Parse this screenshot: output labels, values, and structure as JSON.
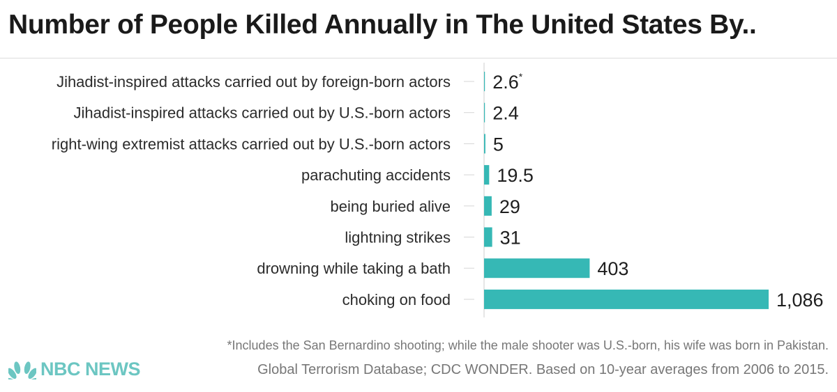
{
  "title": "Number of People Killed Annually in The United States By..",
  "chart_data": {
    "type": "bar",
    "orientation": "horizontal",
    "title": "Number of People Killed Annually in The United States By..",
    "categories": [
      "Jihadist-inspired attacks carried out by foreign-born actors",
      "Jihadist-inspired attacks carried out by U.S.-born actors",
      "right-wing extremist attacks carried out by U.S.-born actors",
      "parachuting accidents",
      "being buried alive",
      "lightning strikes",
      "drowning while taking a bath",
      "choking on food"
    ],
    "values": [
      2.6,
      2.4,
      5,
      19.5,
      29,
      31,
      403,
      1086
    ],
    "value_labels": [
      "2.6",
      "2.4",
      "5",
      "19.5",
      "29",
      "31",
      "403",
      "1,086"
    ],
    "annotations": [
      {
        "category_index": 0,
        "text": "*"
      }
    ],
    "xlim": [
      0,
      1086
    ],
    "color": "#36b8b5",
    "grid": false,
    "legend": "none"
  },
  "footnote": "*Includes the San Bernardino shooting;  while the male shooter was U.S.-born, his wife was born in Pakistan.",
  "source": "Global Terrorism Database; CDC WONDER. Based on 10-year averages from 2006 to 2015.",
  "brand": {
    "name": "NBC NEWS",
    "logo_icon": "peacock-icon",
    "color": "#6cc6c2"
  }
}
